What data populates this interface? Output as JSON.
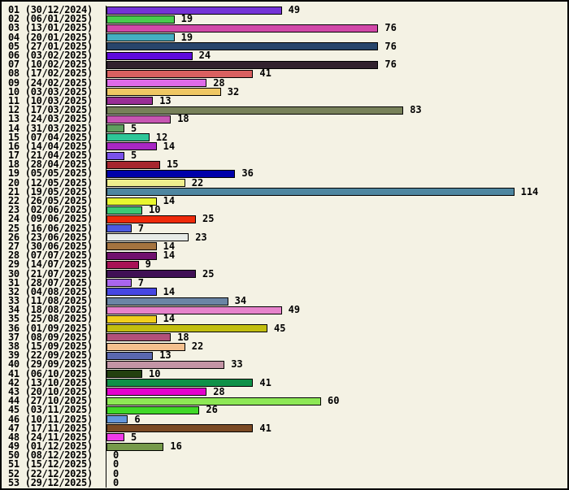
{
  "chart_data": {
    "type": "bar",
    "orientation": "horizontal",
    "title": "",
    "xlabel": "",
    "ylabel": "",
    "xlim": [
      0,
      114
    ],
    "grid": false,
    "legend": false,
    "value_labels_shown": true,
    "background_color": "#F4F2E4",
    "axis_color": "#000000",
    "categories": [
      "01 (30/12/2024)",
      "02 (06/01/2025)",
      "03 (13/01/2025)",
      "04 (20/01/2025)",
      "05 (27/01/2025)",
      "06 (03/02/2025)",
      "07 (10/02/2025)",
      "08 (17/02/2025)",
      "09 (24/02/2025)",
      "10 (03/03/2025)",
      "11 (10/03/2025)",
      "12 (17/03/2025)",
      "13 (24/03/2025)",
      "14 (31/03/2025)",
      "15 (07/04/2025)",
      "16 (14/04/2025)",
      "17 (21/04/2025)",
      "18 (28/04/2025)",
      "19 (05/05/2025)",
      "20 (12/05/2025)",
      "21 (19/05/2025)",
      "22 (26/05/2025)",
      "23 (02/06/2025)",
      "24 (09/06/2025)",
      "25 (16/06/2025)",
      "26 (23/06/2025)",
      "27 (30/06/2025)",
      "28 (07/07/2025)",
      "29 (14/07/2025)",
      "30 (21/07/2025)",
      "31 (28/07/2025)",
      "32 (04/08/2025)",
      "33 (11/08/2025)",
      "34 (18/08/2025)",
      "35 (25/08/2025)",
      "36 (01/09/2025)",
      "37 (08/09/2025)",
      "38 (15/09/2025)",
      "39 (22/09/2025)",
      "40 (29/09/2025)",
      "41 (06/10/2025)",
      "42 (13/10/2025)",
      "43 (20/10/2025)",
      "44 (27/10/2025)",
      "45 (03/11/2025)",
      "46 (10/11/2025)",
      "47 (17/11/2025)",
      "48 (24/11/2025)",
      "49 (01/12/2025)",
      "50 (08/12/2025)",
      "51 (15/12/2025)",
      "52 (22/12/2025)",
      "53 (29/12/2025)"
    ],
    "values": [
      49,
      19,
      76,
      19,
      76,
      24,
      76,
      41,
      28,
      32,
      13,
      83,
      18,
      5,
      12,
      14,
      5,
      15,
      36,
      22,
      114,
      14,
      10,
      25,
      7,
      23,
      14,
      14,
      9,
      25,
      7,
      14,
      34,
      49,
      14,
      45,
      18,
      22,
      13,
      33,
      10,
      41,
      28,
      60,
      26,
      6,
      41,
      5,
      16,
      0,
      0,
      0,
      0
    ],
    "bar_colors": [
      "#7433D6",
      "#48CB4E",
      "#D148A8",
      "#45AEC2",
      "#28456B",
      "#5E0ADB",
      "#32222E",
      "#D96060",
      "#DE6BE8",
      "#EFC763",
      "#9A2E96",
      "#778159",
      "#C756B2",
      "#5F9F5F",
      "#2EC698",
      "#A827C4",
      "#7A52EA",
      "#A7262E",
      "#0000AA",
      "#EFEF8E",
      "#4E86A0",
      "#E8F630",
      "#3CC876",
      "#EE2A0A",
      "#4C5AE0",
      "#E7EBE7",
      "#A5743F",
      "#70106E",
      "#A81256",
      "#401055",
      "#AA66EE",
      "#4646E2",
      "#6B85A5",
      "#E683CB",
      "#F0CE1E",
      "#C2BE0F",
      "#B2507A",
      "#F5C08E",
      "#5A67AF",
      "#C394A5",
      "#23400F",
      "#0F9148",
      "#E400CE",
      "#8DE855",
      "#40D828",
      "#6497DB",
      "#7B4A24",
      "#F03BE8",
      "#769A4A",
      null,
      null,
      null,
      null
    ]
  }
}
